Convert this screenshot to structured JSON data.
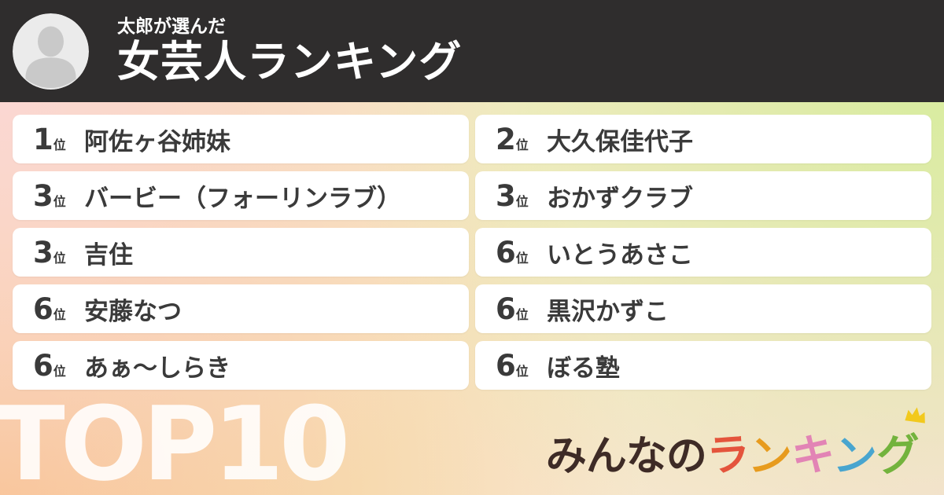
{
  "header": {
    "subtitle": "太郎が選んだ",
    "title": "女芸人ランキング"
  },
  "ranking": {
    "unit_suffix": "位",
    "items": [
      {
        "rank": "1",
        "name": "阿佐ヶ谷姉妹"
      },
      {
        "rank": "2",
        "name": "大久保佳代子"
      },
      {
        "rank": "3",
        "name": "バービー（フォーリンラブ）"
      },
      {
        "rank": "3",
        "name": "おかずクラブ"
      },
      {
        "rank": "3",
        "name": "吉住"
      },
      {
        "rank": "6",
        "name": "いとうあさこ"
      },
      {
        "rank": "6",
        "name": "安藤なつ"
      },
      {
        "rank": "6",
        "name": "黒沢かずこ"
      },
      {
        "rank": "6",
        "name": "あぁ〜しらき"
      },
      {
        "rank": "6",
        "name": "ぼる塾"
      }
    ]
  },
  "footer": {
    "badge": "TOP10",
    "logo": {
      "prefix": "みんなの",
      "colored_letters": [
        {
          "char": "ラ",
          "color": "#e4543c"
        },
        {
          "char": "ン",
          "color": "#e79b1e"
        },
        {
          "char": "キ",
          "color": "#e284b5"
        },
        {
          "char": "ン",
          "color": "#48a5cf"
        },
        {
          "char": "グ",
          "color": "#73b33d"
        }
      ],
      "crown_color": "#f2c91d"
    }
  },
  "colors": {
    "header_bg": "#2f2d2d",
    "card_bg": "#ffffff",
    "card_text": "#3a3a3a",
    "bg_top_left": "#fbd7d3",
    "bg_top_right": "#d7ec9d",
    "bg_bottom_left": "#f8c18c",
    "bg_bottom_right": "#fddfdd",
    "avatar_bg": "#ebebeb",
    "avatar_person": "#c9c9c9"
  },
  "icons": {
    "avatar": "person-icon",
    "crown": "crown-icon"
  }
}
